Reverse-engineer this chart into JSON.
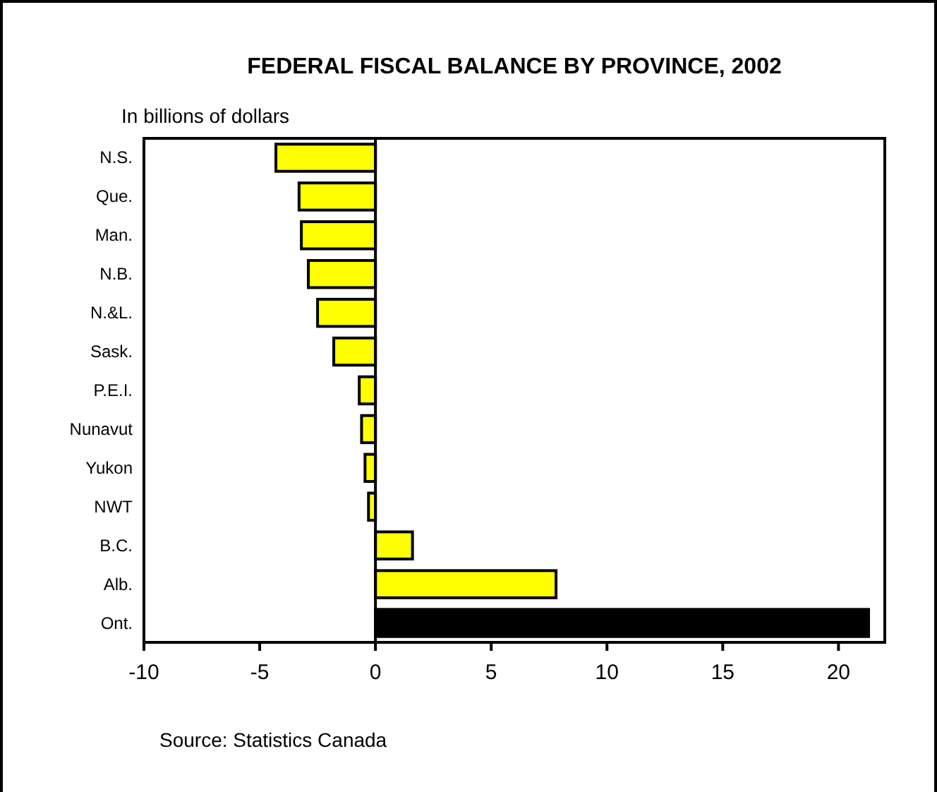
{
  "chart_data": {
    "type": "bar",
    "orientation": "horizontal",
    "title": "FEDERAL FISCAL BALANCE BY PROVINCE, 2002",
    "subtitle": "In billions of dollars",
    "categories": [
      "N.S.",
      "Que.",
      "Man.",
      "N.B.",
      "N.&L.",
      "Sask.",
      "P.E.I.",
      "Nunavut",
      "Yukon",
      "NWT",
      "B.C.",
      "Alb.",
      "Ont."
    ],
    "values": [
      -4.3,
      -3.3,
      -3.2,
      -2.9,
      -2.5,
      -1.8,
      -0.7,
      -0.6,
      -0.45,
      -0.3,
      1.6,
      7.8,
      21.3
    ],
    "colors": [
      "#ffff00",
      "#ffff00",
      "#ffff00",
      "#ffff00",
      "#ffff00",
      "#ffff00",
      "#ffff00",
      "#ffff00",
      "#ffff00",
      "#ffff00",
      "#ffff00",
      "#ffff00",
      "#000000"
    ],
    "xlim": [
      -10,
      22
    ],
    "xticks": [
      -10,
      -5,
      0,
      5,
      10,
      15,
      20
    ],
    "annotations": [
      "Source: Statistics Canada"
    ]
  }
}
